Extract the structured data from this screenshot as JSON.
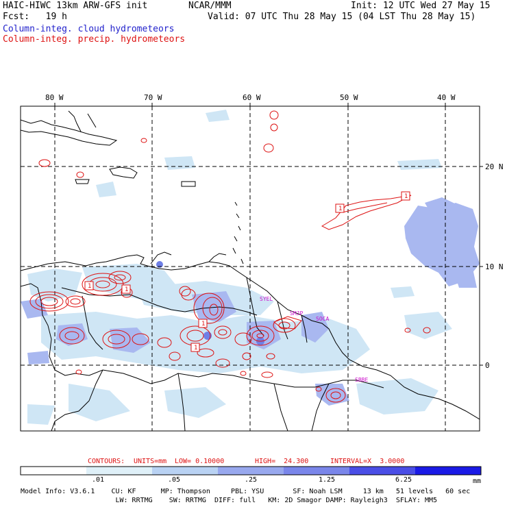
{
  "header": {
    "model_title": "HAIC-HIWC 13km ARW-GFS init",
    "org": "NCAR/MMM",
    "init": "Init: 12 UTC Wed 27 May 15",
    "fcst": "Fcst:   19 h",
    "valid": "Valid: 07 UTC Thu 28 May 15 (04 LST Thu 28 May 15)",
    "field1": "Column-integ. cloud hydrometeors",
    "field2": "Column-integ. precip. hydrometeors"
  },
  "map": {
    "lon_labels": [
      "80 W",
      "70 W",
      "60 W",
      "50 W",
      "40 W"
    ],
    "lat_labels": [
      "20 N",
      "10 N",
      "0"
    ],
    "stations": [
      "SYEL",
      "SMJP",
      "SOCA",
      "SBBE"
    ],
    "contour_label": "1",
    "colors": {
      "cloud_light": "#cfe6f5",
      "cloud_mid": "#a9b8f0",
      "cloud_dark": "#6f7fe6",
      "precip": "#dd1111",
      "grid": "#000000"
    }
  },
  "contour_info": {
    "label": "CONTOURS:",
    "units": "UNITS=mm",
    "low": "LOW= 0.10000",
    "high": "HIGH=  24.300",
    "interval": "INTERVAL=X  3.0000"
  },
  "colorbar": {
    "ticks": [
      ".01",
      ".05",
      ".25",
      "1.25",
      "6.25"
    ],
    "units": "mm",
    "colors": [
      "#ffffff",
      "#dff0f8",
      "#b9d2f3",
      "#98a8ee",
      "#7a86ea",
      "#4a4ee6",
      "#1a1ae6"
    ]
  },
  "footer": {
    "line1": "Model Info: V3.6.1    CU: KF      MP: Thompson     PBL: YSU       SF: Noah LSM     13 km   51 levels   60 sec",
    "line2": "                       LW: RRTMG    SW: RRTMG  DIFF: full   KM: 2D Smagor DAMP: Rayleigh3  SFLAY: MM5"
  }
}
